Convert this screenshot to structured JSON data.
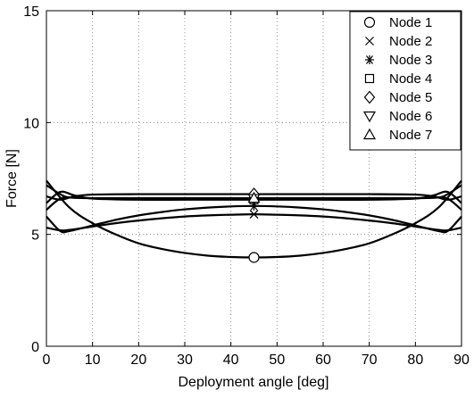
{
  "chart_data": {
    "type": "line",
    "xlabel": "Deployment angle [deg]",
    "ylabel": "Force [N]",
    "xlim": [
      0,
      90
    ],
    "ylim": [
      0,
      15
    ],
    "xticks": [
      0,
      10,
      20,
      30,
      40,
      50,
      60,
      70,
      80,
      90
    ],
    "yticks": [
      0,
      5,
      10,
      15
    ],
    "xtick_labels": [
      "0",
      "10",
      "20",
      "30",
      "40",
      "50",
      "60",
      "70",
      "80",
      "90"
    ],
    "ytick_labels": [
      "0",
      "5",
      "10",
      "15"
    ],
    "grid": true,
    "legend_position": "top-right",
    "series": [
      {
        "name": "Node 1",
        "marker": "circle",
        "x": [
          0,
          5,
          10,
          15,
          20,
          25,
          30,
          35,
          40,
          45,
          50,
          55,
          60,
          65,
          70,
          75,
          80,
          85,
          90
        ],
        "y": [
          7.4,
          6.2,
          5.5,
          5.0,
          4.6,
          4.35,
          4.17,
          4.05,
          3.99,
          3.97,
          3.99,
          4.05,
          4.17,
          4.35,
          4.6,
          5.0,
          5.5,
          6.2,
          7.4
        ]
      },
      {
        "name": "Node 2",
        "marker": "x",
        "x": [
          0,
          3,
          5,
          10,
          15,
          20,
          25,
          30,
          35,
          40,
          45,
          50,
          55,
          60,
          65,
          70,
          75,
          80,
          85,
          87,
          90
        ],
        "y": [
          5.3,
          5.18,
          5.2,
          5.35,
          5.5,
          5.62,
          5.72,
          5.8,
          5.85,
          5.88,
          5.9,
          5.88,
          5.85,
          5.8,
          5.72,
          5.62,
          5.5,
          5.35,
          5.2,
          5.18,
          5.3
        ]
      },
      {
        "name": "Node 3",
        "marker": "asterisk",
        "x": [
          0,
          3,
          5,
          10,
          15,
          20,
          25,
          30,
          35,
          40,
          45,
          50,
          55,
          60,
          65,
          70,
          75,
          80,
          85,
          87,
          90
        ],
        "y": [
          5.8,
          5.15,
          5.15,
          5.4,
          5.65,
          5.85,
          6.0,
          6.12,
          6.2,
          6.25,
          6.27,
          6.25,
          6.2,
          6.12,
          6.0,
          5.85,
          5.65,
          5.4,
          5.15,
          5.15,
          5.8
        ]
      },
      {
        "name": "Node 4",
        "marker": "square",
        "x": [
          0,
          3,
          6,
          10,
          20,
          30,
          40,
          45,
          50,
          60,
          70,
          80,
          84,
          87,
          90
        ],
        "y": [
          6.4,
          6.9,
          6.75,
          6.6,
          6.55,
          6.55,
          6.55,
          6.55,
          6.55,
          6.55,
          6.55,
          6.6,
          6.75,
          6.9,
          6.4
        ]
      },
      {
        "name": "Node 5",
        "marker": "diamond",
        "x": [
          0,
          3,
          6,
          10,
          20,
          30,
          40,
          45,
          50,
          60,
          70,
          80,
          84,
          87,
          90
        ],
        "y": [
          6.7,
          6.55,
          6.7,
          6.78,
          6.8,
          6.8,
          6.8,
          6.8,
          6.8,
          6.8,
          6.8,
          6.78,
          6.7,
          6.55,
          6.7
        ]
      },
      {
        "name": "Node 6",
        "marker": "triangle-down",
        "x": [
          0,
          3,
          6,
          10,
          20,
          30,
          40,
          45,
          50,
          60,
          70,
          80,
          84,
          87,
          90
        ],
        "y": [
          6.1,
          6.6,
          6.65,
          6.62,
          6.6,
          6.6,
          6.6,
          6.6,
          6.6,
          6.6,
          6.6,
          6.62,
          6.65,
          6.6,
          6.1
        ]
      },
      {
        "name": "Node 7",
        "marker": "triangle-up",
        "x": [
          0,
          3,
          5,
          10,
          20,
          30,
          40,
          45,
          50,
          60,
          70,
          80,
          85,
          87,
          90
        ],
        "y": [
          7.2,
          6.8,
          6.65,
          6.62,
          6.62,
          6.62,
          6.62,
          6.62,
          6.62,
          6.62,
          6.62,
          6.62,
          6.65,
          6.8,
          7.2
        ]
      }
    ],
    "markers": [
      {
        "series": "Node 1",
        "x": 45,
        "y": 3.97
      },
      {
        "series": "Node 2",
        "x": 45,
        "y": 5.9
      },
      {
        "series": "Node 3",
        "x": 45,
        "y": 6.27
      },
      {
        "series": "Node 4",
        "x": 45,
        "y": 6.55
      },
      {
        "series": "Node 5",
        "x": 45,
        "y": 6.8
      },
      {
        "series": "Node 6",
        "x": 45,
        "y": 6.6
      },
      {
        "series": "Node 7",
        "x": 45,
        "y": 6.62
      }
    ]
  }
}
